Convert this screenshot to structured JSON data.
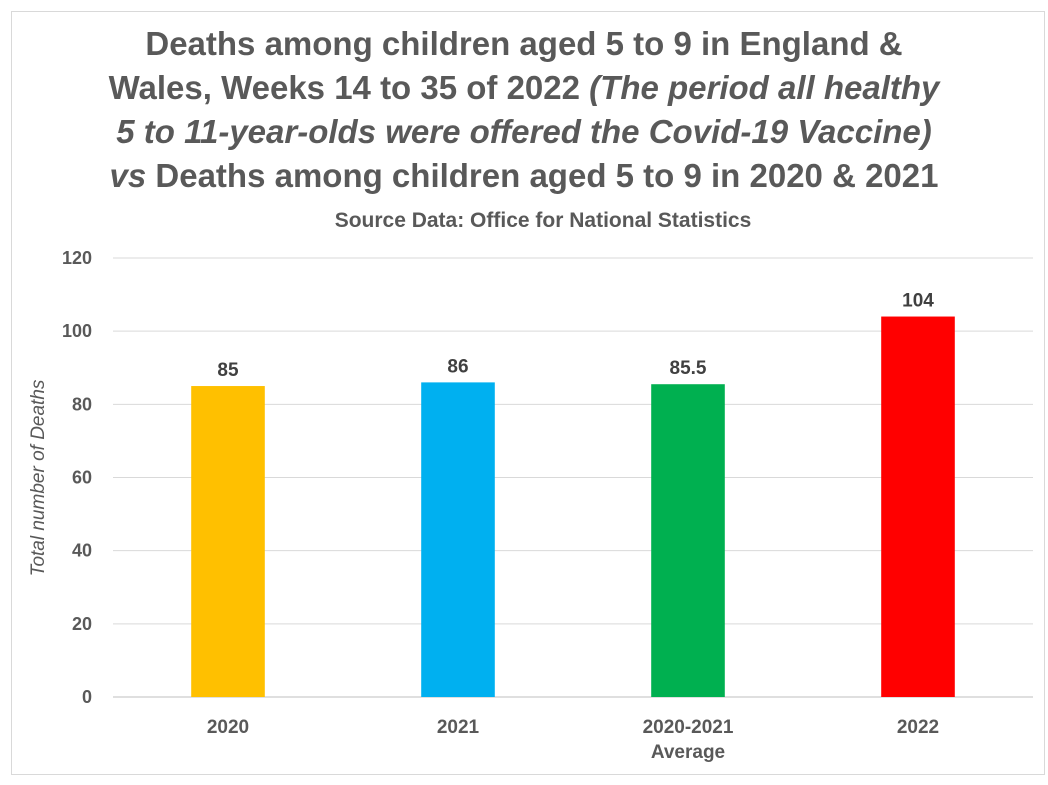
{
  "chart_data": {
    "type": "bar",
    "title": {
      "line1": "Deaths among children aged 5 to 9 in England &",
      "line2a": "Wales, Weeks 14 to 35 of 2022 ",
      "line2b": "(The period all healthy",
      "line3": "5 to 11-year-olds were offered the Covid-19 Vaccine)",
      "line4a": "vs",
      "line4b": " Deaths among children aged 5 to 9 in 2020 & 2021"
    },
    "subtitle": "Source Data: Office for National Statistics",
    "ylabel": "Total number of Deaths",
    "xlabel": "",
    "ylim": [
      0,
      120
    ],
    "yticks": [
      0,
      20,
      40,
      60,
      80,
      100,
      120
    ],
    "grid": true,
    "categories": [
      [
        "2020"
      ],
      [
        "2021"
      ],
      [
        "2020-2021",
        "Average"
      ],
      [
        "2022"
      ]
    ],
    "values": [
      85,
      86,
      85.5,
      104
    ],
    "data_labels": [
      "85",
      "86",
      "85.5",
      "104"
    ],
    "colors": [
      "#FFC000",
      "#00B0F0",
      "#00B050",
      "#FF0000"
    ]
  }
}
